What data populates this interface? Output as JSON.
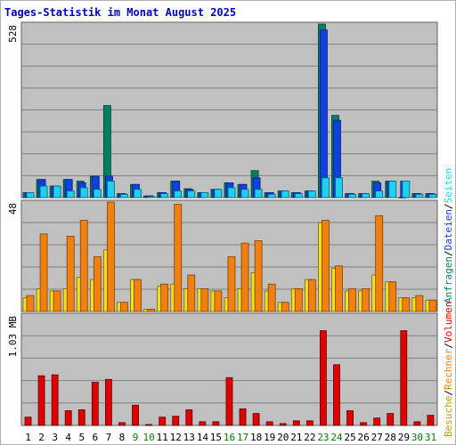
{
  "title": "Tages-Statistik im Monat August 2025",
  "colors": {
    "panel_bg": "#c0c0c0",
    "grid": "#808080",
    "anfragen": "#008060",
    "dateien": "#1040e0",
    "seiten": "#20d0f0",
    "besuche": "#f0e020",
    "rechner": "#f08010",
    "volumen": "#e00000",
    "weekday": "#000000",
    "weekend": "#008000",
    "title": "#0000c0"
  },
  "legend": {
    "top": [
      {
        "text": "Anfragen",
        "color": "#008060"
      },
      {
        "text": "Dateien",
        "color": "#1040e0"
      },
      {
        "text": "Seiten",
        "color": "#20d0f0"
      }
    ],
    "bottom": [
      {
        "text": "Besuche",
        "color": "#c0a000"
      },
      {
        "text": "Rechner",
        "color": "#f08010"
      },
      {
        "text": "Volumen",
        "color": "#e00000"
      }
    ],
    "separator": "/"
  },
  "chart_data": [
    {
      "type": "bar",
      "panel": "top",
      "scale_label": "528",
      "ylim": [
        0,
        528
      ],
      "categories": [
        "1",
        "2",
        "3",
        "4",
        "5",
        "6",
        "7",
        "8",
        "9",
        "10",
        "11",
        "12",
        "13",
        "14",
        "15",
        "16",
        "17",
        "18",
        "19",
        "20",
        "21",
        "22",
        "23",
        "24",
        "25",
        "26",
        "27",
        "28",
        "29",
        "30",
        "31"
      ],
      "series": [
        {
          "name": "Anfragen",
          "values": [
            15,
            55,
            35,
            55,
            50,
            65,
            280,
            12,
            40,
            5,
            15,
            50,
            27,
            15,
            25,
            45,
            40,
            82,
            15,
            20,
            15,
            20,
            528,
            250,
            12,
            12,
            50,
            50,
            0,
            12,
            12
          ]
        },
        {
          "name": "Dateien",
          "values": [
            15,
            55,
            35,
            55,
            45,
            65,
            65,
            12,
            40,
            5,
            15,
            50,
            25,
            15,
            25,
            45,
            40,
            60,
            15,
            20,
            15,
            20,
            510,
            235,
            12,
            12,
            45,
            50,
            50,
            12,
            12
          ]
        },
        {
          "name": "Seiten",
          "values": [
            15,
            35,
            35,
            20,
            30,
            25,
            50,
            10,
            25,
            3,
            12,
            20,
            20,
            15,
            25,
            30,
            25,
            25,
            10,
            20,
            12,
            20,
            60,
            60,
            10,
            12,
            20,
            50,
            50,
            10,
            10
          ]
        }
      ]
    },
    {
      "type": "bar",
      "panel": "middle",
      "scale_label": "48",
      "ylim": [
        0,
        48
      ],
      "categories": [
        "1",
        "2",
        "3",
        "4",
        "5",
        "6",
        "7",
        "8",
        "9",
        "10",
        "11",
        "12",
        "13",
        "14",
        "15",
        "16",
        "17",
        "18",
        "19",
        "20",
        "21",
        "22",
        "23",
        "24",
        "25",
        "26",
        "27",
        "28",
        "29",
        "30",
        "31"
      ],
      "series": [
        {
          "name": "Besuche",
          "values": [
            6,
            10,
            9,
            10,
            15,
            14,
            27,
            4,
            14,
            1,
            11,
            12,
            10,
            10,
            9,
            6,
            10,
            17,
            9,
            4,
            10,
            14,
            39,
            19,
            9,
            9,
            16,
            13,
            6,
            6,
            5
          ]
        },
        {
          "name": "Rechner",
          "values": [
            7,
            34,
            9,
            33,
            40,
            24,
            48,
            4,
            14,
            1,
            12,
            47,
            16,
            10,
            9,
            24,
            30,
            31,
            12,
            4,
            10,
            14,
            40,
            20,
            10,
            10,
            42,
            13,
            6,
            7,
            5
          ]
        }
      ]
    },
    {
      "type": "bar",
      "panel": "bottom",
      "scale_label": "1.03 MB",
      "ylim": [
        0,
        1.2
      ],
      "categories": [
        "1",
        "2",
        "3",
        "4",
        "5",
        "6",
        "7",
        "8",
        "9",
        "10",
        "11",
        "12",
        "13",
        "14",
        "15",
        "16",
        "17",
        "18",
        "19",
        "20",
        "21",
        "22",
        "23",
        "24",
        "25",
        "26",
        "27",
        "28",
        "29",
        "30",
        "31"
      ],
      "series": [
        {
          "name": "Volumen",
          "values": [
            0.09,
            0.54,
            0.55,
            0.16,
            0.17,
            0.47,
            0.5,
            0.03,
            0.22,
            0.01,
            0.09,
            0.1,
            0.17,
            0.04,
            0.04,
            0.52,
            0.18,
            0.13,
            0.04,
            0.02,
            0.05,
            0.05,
            1.03,
            0.66,
            0.16,
            0.03,
            0.08,
            0.13,
            1.03,
            0.04,
            0.11
          ]
        }
      ]
    }
  ],
  "weekend_days": [
    9,
    10,
    16,
    17,
    23,
    24,
    30,
    31
  ]
}
